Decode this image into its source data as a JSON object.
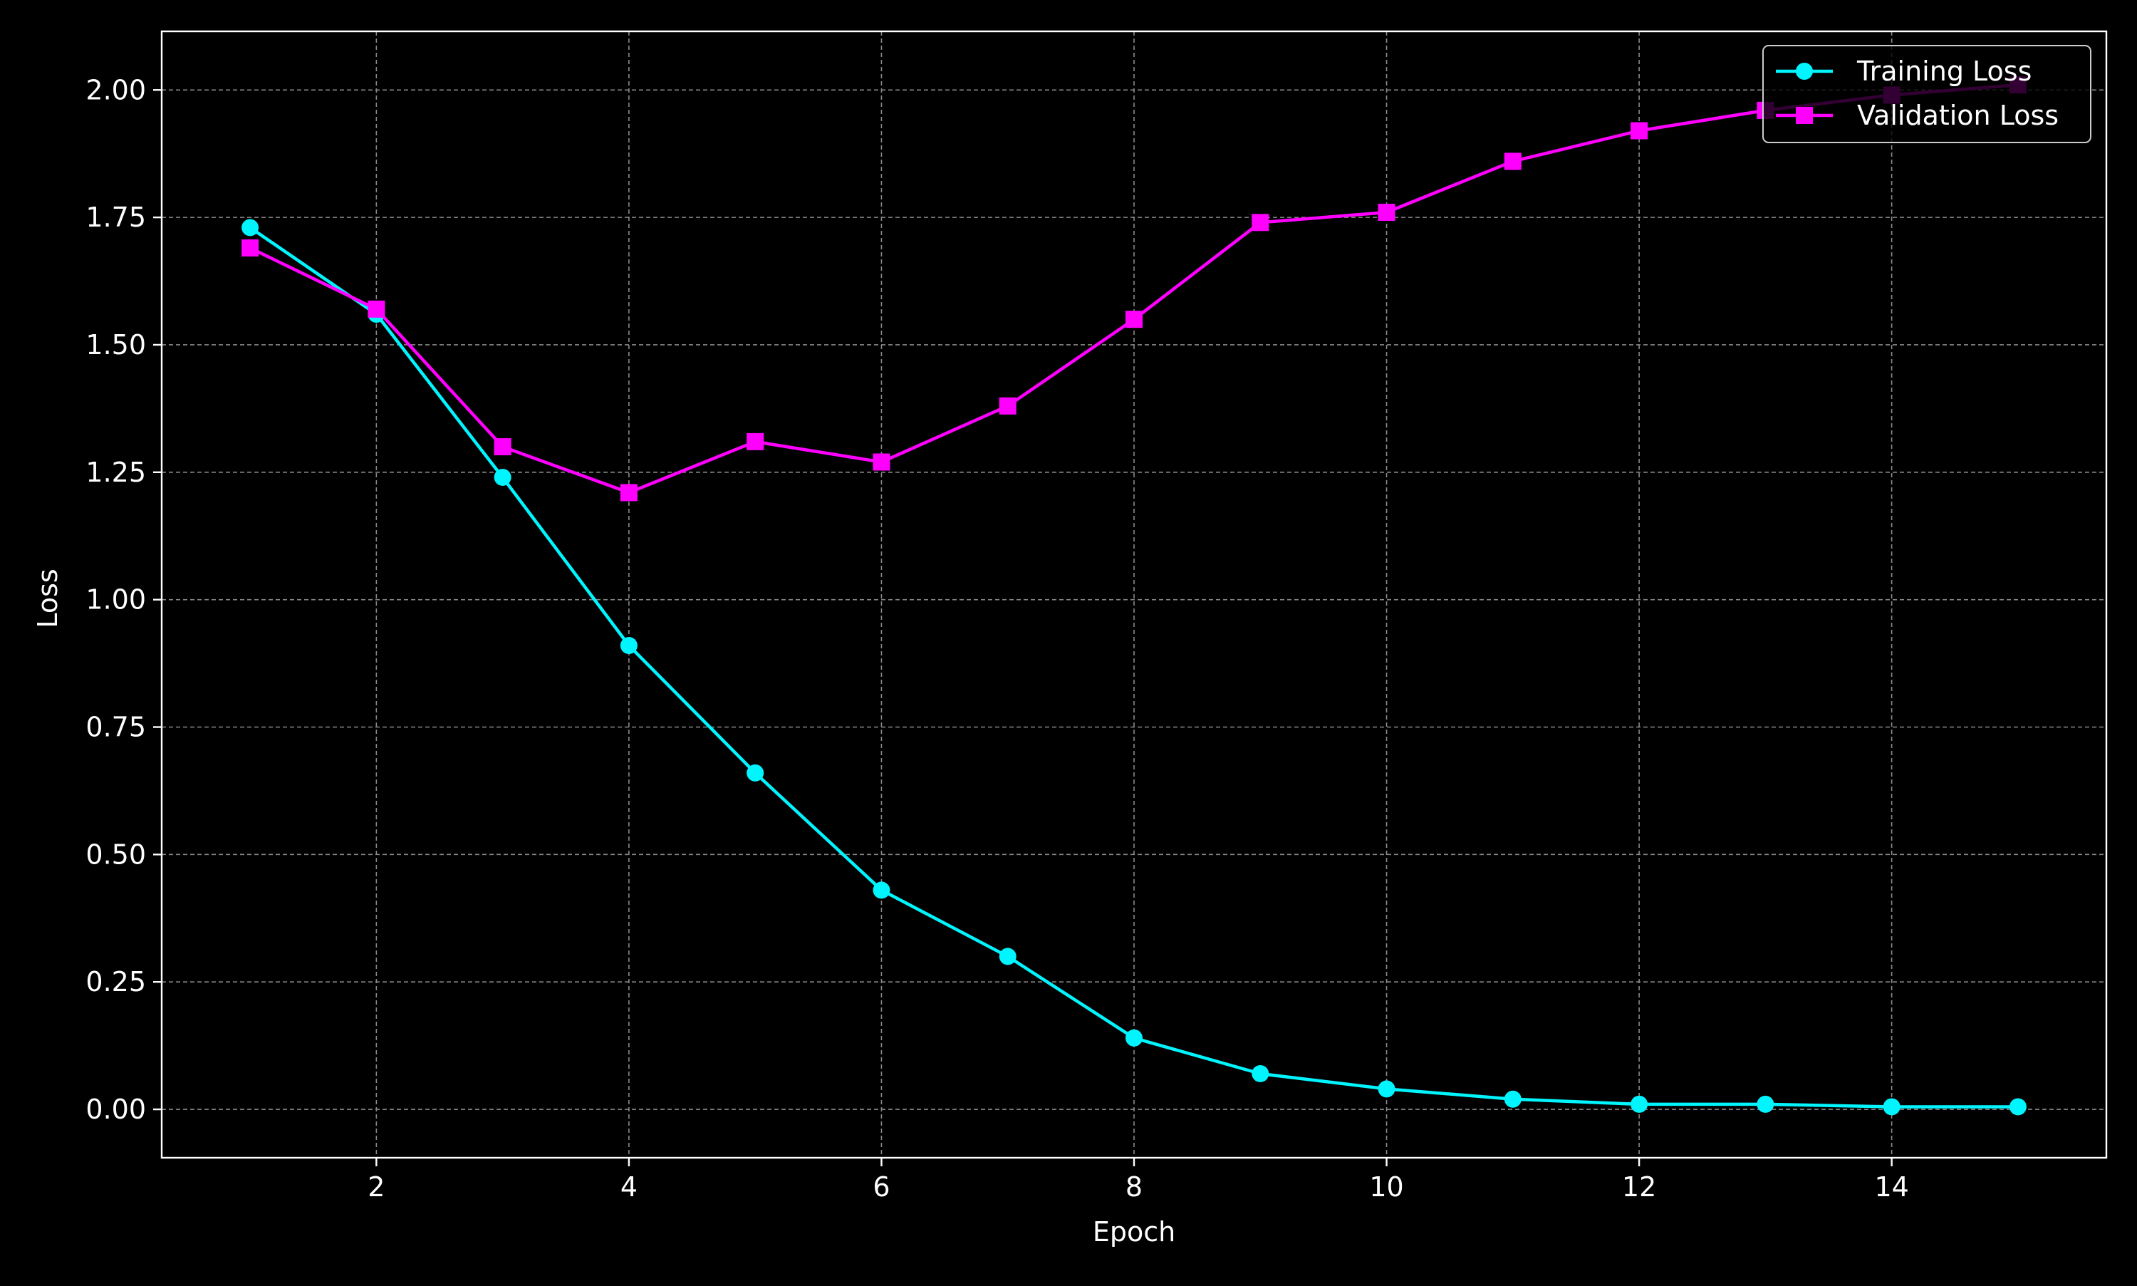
{
  "chart_data": {
    "type": "line",
    "title": "",
    "xlabel": "Epoch",
    "ylabel": "Loss",
    "xlim": [
      0.3,
      15.7
    ],
    "ylim": [
      -0.095,
      2.115
    ],
    "xticks": [
      2,
      4,
      6,
      8,
      10,
      12,
      14
    ],
    "yticks": [
      0.0,
      0.25,
      0.5,
      0.75,
      1.0,
      1.25,
      1.5,
      1.75,
      2.0
    ],
    "ytick_labels": [
      "0.00",
      "0.25",
      "0.50",
      "0.75",
      "1.00",
      "1.25",
      "1.50",
      "1.75",
      "2.00"
    ],
    "grid": true,
    "legend_position": "top-right",
    "x": [
      1,
      2,
      3,
      4,
      5,
      6,
      7,
      8,
      9,
      10,
      11,
      12,
      13,
      14,
      15
    ],
    "series": [
      {
        "name": "Training Loss",
        "color": "#00f5ff",
        "marker": "circle",
        "values": [
          1.73,
          1.56,
          1.24,
          0.91,
          0.66,
          0.43,
          0.3,
          0.14,
          0.07,
          0.04,
          0.02,
          0.01,
          0.01,
          0.005,
          0.005
        ]
      },
      {
        "name": "Validation Loss",
        "color": "#ff00ff",
        "marker": "square",
        "values": [
          1.69,
          1.57,
          1.3,
          1.21,
          1.31,
          1.27,
          1.38,
          1.55,
          1.74,
          1.76,
          1.86,
          1.92,
          1.96,
          1.99,
          2.01
        ]
      }
    ]
  }
}
